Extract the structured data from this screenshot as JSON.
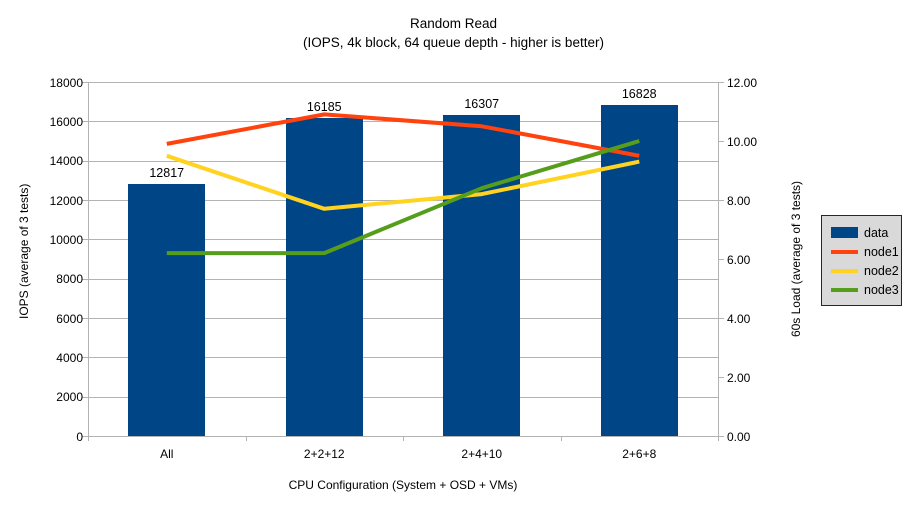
{
  "title": "Random Read",
  "subtitle": "(IOPS, 4k block, 64 queue depth - higher is better)",
  "chart_data": {
    "type": "bar+line",
    "categories": [
      "All",
      "2+2+12",
      "2+4+10",
      "2+6+8"
    ],
    "bar_series": {
      "name": "data",
      "axis": "left",
      "color": "#004586",
      "values": [
        12817,
        16185,
        16307,
        16828
      ],
      "labels": [
        "12817",
        "16185",
        "16307",
        "16828"
      ]
    },
    "line_series": [
      {
        "name": "node1",
        "axis": "right",
        "color": "#ff420e",
        "values": [
          9.9,
          10.9,
          10.5,
          9.5
        ]
      },
      {
        "name": "node2",
        "axis": "right",
        "color": "#ffd320",
        "values": [
          9.5,
          7.7,
          8.2,
          9.3
        ]
      },
      {
        "name": "node3",
        "axis": "right",
        "color": "#579d1c",
        "values": [
          6.2,
          6.2,
          8.4,
          10.0
        ]
      }
    ],
    "xlabel": "CPU Configuration (System + OSD + VMs)",
    "ylabel_left": "IOPS (average of 3 tests)",
    "ylabel_right": "60s Load (average of 3 tests)",
    "ylim_left": [
      0,
      18000
    ],
    "ytick_step_left": 2000,
    "ylim_right": [
      0,
      12
    ],
    "ytick_step_right": 2,
    "ytick_format_right_decimals": 2,
    "grid": true,
    "legend_position": "right",
    "colors": {
      "grid": "#b3b3b3",
      "axis": "#b3b3b3",
      "text": "#000000",
      "legend_bg": "#d9d9d9",
      "legend_border": "#262626",
      "background": "#ffffff"
    }
  }
}
